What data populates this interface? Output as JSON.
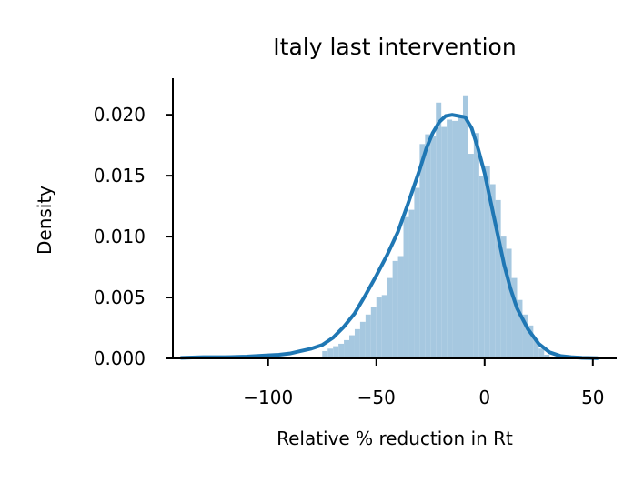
{
  "chart_data": {
    "type": "histogram",
    "title": "Italy last intervention",
    "xlabel": "Relative % reduction in Rt",
    "ylabel": "Density",
    "xlim": [
      -144,
      61
    ],
    "ylim": [
      0,
      0.023
    ],
    "xticks": [
      -100,
      -50,
      0,
      50
    ],
    "xtick_labels": [
      "−100",
      "−50",
      "0",
      "50"
    ],
    "yticks": [
      0,
      0.005,
      0.01,
      0.015,
      0.02
    ],
    "ytick_labels": [
      "0.000",
      "0.005",
      "0.010",
      "0.015",
      "0.020"
    ],
    "grid": false,
    "colors": {
      "histogram": "#a6c8e0",
      "kde": "#1f77b4",
      "axes": "#000000"
    },
    "histogram": {
      "bin_edges": [
        -75,
        -72.5,
        -70,
        -67.5,
        -65,
        -62.5,
        -60,
        -57.5,
        -55,
        -52.5,
        -50,
        -47.5,
        -45,
        -42.5,
        -40,
        -37.5,
        -35,
        -32.5,
        -30,
        -27.5,
        -25,
        -22.5,
        -20,
        -17.5,
        -15,
        -12.5,
        -10,
        -7.5,
        -5,
        -2.5,
        0,
        2.5,
        5,
        7.5,
        10,
        12.5,
        15,
        17.5,
        20,
        22.5,
        25,
        27.5,
        30,
        32.5
      ],
      "densities": [
        0.0006,
        0.0008,
        0.001,
        0.0012,
        0.0015,
        0.0019,
        0.0024,
        0.003,
        0.0036,
        0.0042,
        0.005,
        0.0052,
        0.0066,
        0.008,
        0.0084,
        0.0116,
        0.0122,
        0.014,
        0.0176,
        0.0184,
        0.0183,
        0.021,
        0.019,
        0.0196,
        0.0195,
        0.02,
        0.0216,
        0.0168,
        0.0185,
        0.015,
        0.0158,
        0.0143,
        0.013,
        0.01,
        0.009,
        0.0066,
        0.0048,
        0.0036,
        0.0027,
        0.0016,
        0.0008,
        0.0003,
        0.0001
      ]
    },
    "kde": {
      "x": [
        -140,
        -130,
        -120,
        -110,
        -100,
        -95,
        -90,
        -85,
        -80,
        -75,
        -70,
        -65,
        -60,
        -55,
        -50,
        -45,
        -40,
        -35,
        -30,
        -27,
        -24,
        -21,
        -18,
        -15,
        -12,
        -9,
        -6,
        -3,
        0,
        3,
        6,
        9,
        12,
        15,
        20,
        25,
        30,
        35,
        40,
        45,
        52
      ],
      "y": [
        5e-05,
        0.0001,
        0.0001,
        0.00015,
        0.00025,
        0.0003,
        0.0004,
        0.0006,
        0.0008,
        0.0011,
        0.0017,
        0.0026,
        0.0037,
        0.0052,
        0.0068,
        0.0085,
        0.0104,
        0.0129,
        0.0155,
        0.0172,
        0.0185,
        0.0194,
        0.0199,
        0.02,
        0.0199,
        0.0198,
        0.0189,
        0.0172,
        0.0152,
        0.0127,
        0.0102,
        0.0077,
        0.0057,
        0.0041,
        0.0024,
        0.0012,
        0.0005,
        0.0002,
        0.0001,
        5e-05,
        2e-05
      ]
    }
  }
}
